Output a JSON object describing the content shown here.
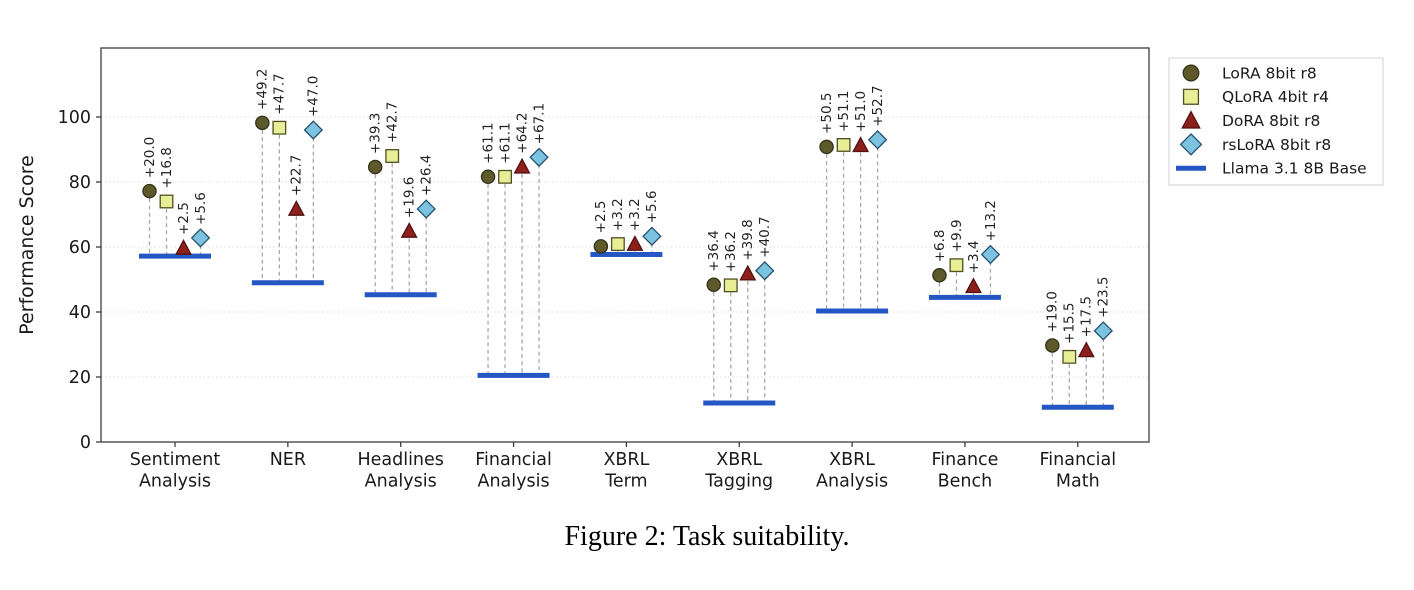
{
  "figure": {
    "caption": "Figure 2: Task suitability."
  },
  "chart_data": {
    "type": "scatter",
    "title": "",
    "xlabel": "",
    "ylabel": "Performance Score",
    "ylim": [
      0,
      121
    ],
    "yticks": [
      0,
      20,
      40,
      60,
      80,
      100
    ],
    "grid": "horizontal-dotted",
    "legend_position": "outside-top-right",
    "annotation_prefix": "+",
    "series": [
      {
        "name": "LoRA 8bit r8",
        "slug": "lora",
        "marker": "circle",
        "fill": "#5d592a",
        "edge": "#35321a"
      },
      {
        "name": "QLoRA 4bit r4",
        "slug": "qlora",
        "marker": "square",
        "fill": "#e7ee96",
        "edge": "#4f4f23"
      },
      {
        "name": "DoRA 8bit r8",
        "slug": "dora",
        "marker": "triangle",
        "fill": "#8d1f1d",
        "edge": "#531110"
      },
      {
        "name": "rsLoRA 8bit r8",
        "slug": "rslora",
        "marker": "diamond",
        "fill": "#7cc3e2",
        "edge": "#27506b"
      }
    ],
    "baseline": {
      "name": "Llama 3.1 8B Base",
      "color": "#2456c4"
    },
    "groups": [
      {
        "category": [
          "Sentiment",
          "Analysis"
        ],
        "slug": "sentiment-analysis",
        "base": 57.2,
        "deltas": [
          "20.0",
          "16.8",
          "2.5",
          "5.6"
        ]
      },
      {
        "category": [
          "NER"
        ],
        "slug": "ner",
        "base": 49.0,
        "deltas": [
          "49.2",
          "47.7",
          "22.7",
          "47.0"
        ]
      },
      {
        "category": [
          "Headlines",
          "Analysis"
        ],
        "slug": "headlines-analysis",
        "base": 45.3,
        "deltas": [
          "39.3",
          "42.7",
          "19.6",
          "26.4"
        ]
      },
      {
        "category": [
          "Financial",
          "Analysis"
        ],
        "slug": "financial-analysis",
        "base": 20.5,
        "deltas": [
          "61.1",
          "61.1",
          "64.2",
          "67.1"
        ]
      },
      {
        "category": [
          "XBRL",
          "Term"
        ],
        "slug": "xbrl-term",
        "base": 57.7,
        "deltas": [
          "2.5",
          "3.2",
          "3.2",
          "5.6"
        ]
      },
      {
        "category": [
          "XBRL",
          "Tagging"
        ],
        "slug": "xbrl-tagging",
        "base": 12.0,
        "deltas": [
          "36.4",
          "36.2",
          "39.8",
          "40.7"
        ]
      },
      {
        "category": [
          "XBRL",
          "Analysis"
        ],
        "slug": "xbrl-analysis",
        "base": 40.3,
        "deltas": [
          "50.5",
          "51.1",
          "51.0",
          "52.7"
        ]
      },
      {
        "category": [
          "Finance",
          "Bench"
        ],
        "slug": "finance-bench",
        "base": 44.5,
        "deltas": [
          "6.8",
          "9.9",
          "3.4",
          "13.2"
        ]
      },
      {
        "category": [
          "Financial",
          "Math"
        ],
        "slug": "financial-math",
        "base": 10.7,
        "deltas": [
          "19.0",
          "15.5",
          "17.5",
          "23.5"
        ]
      }
    ],
    "colors": {
      "grid": "#dcdcdc",
      "connector": "#a9a9a9",
      "axis": "#3d3d3d",
      "text": "#1a1a1a",
      "legend_border": "#d9d9d9"
    }
  }
}
